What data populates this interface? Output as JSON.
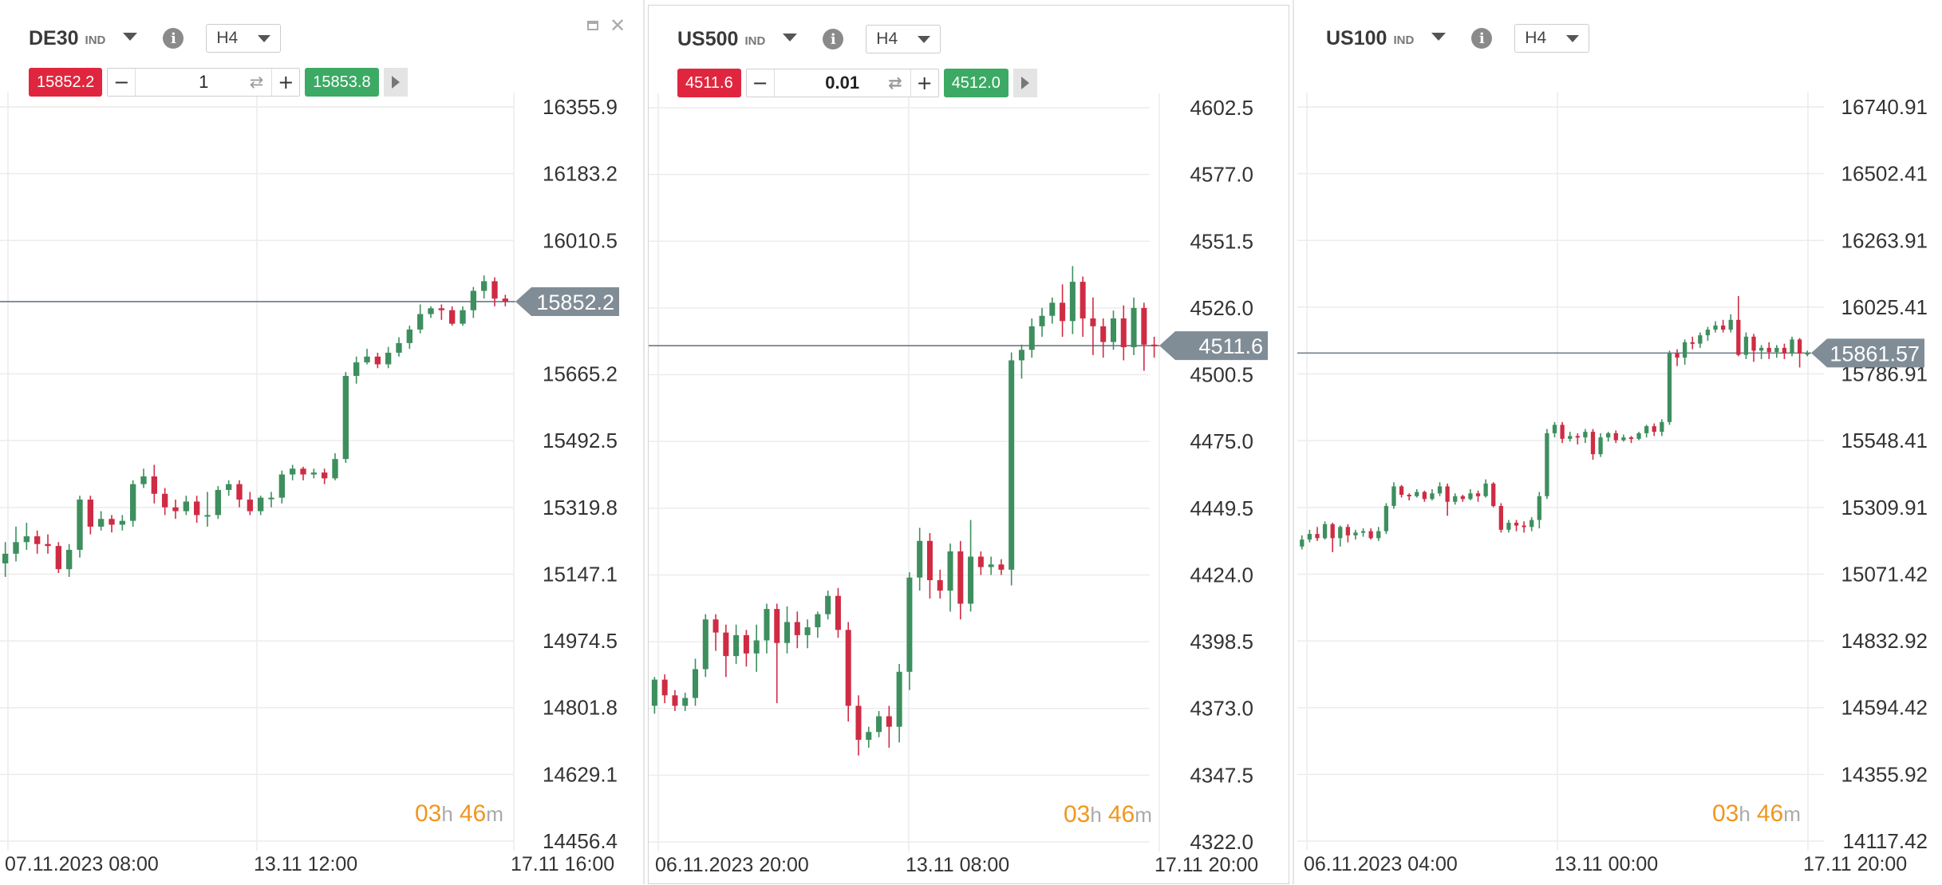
{
  "charts": [
    {
      "symbol": "DE30",
      "type": "IND",
      "timeframe": "H4",
      "sell_price": "15852.2",
      "buy_price": "15853.8",
      "quantity": "1",
      "current_price": "15852.2",
      "timer": {
        "hours": "03",
        "h_unit": "h",
        "minutes": "46",
        "m_unit": "m"
      },
      "y_ticks": [
        "16355.9",
        "16183.2",
        "16010.5",
        "15665.2",
        "15492.5",
        "15319.8",
        "15147.1",
        "14974.5",
        "14801.8",
        "14629.1",
        "14456.4"
      ],
      "x_ticks": [
        "07.11.2023 08:00",
        "13.11 12:00",
        "17.11 16:00"
      ],
      "has_window_controls": true,
      "active": false
    },
    {
      "symbol": "US500",
      "type": "IND",
      "timeframe": "H4",
      "sell_price": "4511.6",
      "buy_price": "4512.0",
      "quantity": "0.01",
      "current_price": "4511.6",
      "timer": {
        "hours": "03",
        "h_unit": "h",
        "minutes": "46",
        "m_unit": "m"
      },
      "y_ticks": [
        "4602.5",
        "4577.0",
        "4551.5",
        "4526.0",
        "4500.5",
        "4475.0",
        "4449.5",
        "4424.0",
        "4398.5",
        "4373.0",
        "4347.5",
        "4322.0"
      ],
      "x_ticks": [
        "06.11.2023 20:00",
        "13.11 08:00",
        "17.11 20:00"
      ],
      "has_window_controls": false,
      "active": true
    },
    {
      "symbol": "US100",
      "type": "IND",
      "timeframe": "H4",
      "current_price": "15861.57",
      "timer": {
        "hours": "03",
        "h_unit": "h",
        "minutes": "46",
        "m_unit": "m"
      },
      "y_ticks": [
        "16740.91",
        "16502.41",
        "16263.91",
        "16025.41",
        "15786.91",
        "15548.41",
        "15309.91",
        "15071.42",
        "14832.92",
        "14594.42",
        "14355.92",
        "14117.42"
      ],
      "x_ticks": [
        "06.11.2023 04:00",
        "13.11 00:00",
        "17.11 20:00"
      ],
      "has_window_controls": false,
      "active": false
    }
  ],
  "chart_data": [
    {
      "type": "candlestick",
      "symbol": "DE30",
      "timeframe": "H4",
      "ylim": [
        14456.4,
        16355.9
      ],
      "yticks": [
        16355.9,
        16183.2,
        16010.5,
        15665.2,
        15492.5,
        15319.8,
        15147.1,
        14974.5,
        14801.8,
        14629.1,
        14456.4
      ],
      "x_labels": [
        "07.11.2023 08:00",
        "13.11 12:00",
        "17.11 16:00"
      ],
      "last_price": 15852.2,
      "bull_color": "#3d8f5e",
      "bear_color": "#cf2c44",
      "candles": [
        [
          15175,
          15200,
          15140,
          15230
        ],
        [
          15200,
          15230,
          15180,
          15270
        ],
        [
          15230,
          15245,
          15210,
          15280
        ],
        [
          15245,
          15225,
          15200,
          15260
        ],
        [
          15225,
          15220,
          15200,
          15250
        ],
        [
          15220,
          15160,
          15150,
          15230
        ],
        [
          15160,
          15210,
          15140,
          15225
        ],
        [
          15210,
          15340,
          15190,
          15350
        ],
        [
          15340,
          15270,
          15250,
          15350
        ],
        [
          15270,
          15290,
          15260,
          15310
        ],
        [
          15290,
          15275,
          15255,
          15300
        ],
        [
          15275,
          15285,
          15260,
          15300
        ],
        [
          15285,
          15380,
          15270,
          15390
        ],
        [
          15380,
          15400,
          15370,
          15420
        ],
        [
          15400,
          15355,
          15330,
          15430
        ],
        [
          15355,
          15320,
          15300,
          15370
        ],
        [
          15320,
          15310,
          15290,
          15340
        ],
        [
          15310,
          15335,
          15300,
          15350
        ],
        [
          15335,
          15300,
          15280,
          15350
        ],
        [
          15300,
          15300,
          15270,
          15360
        ],
        [
          15300,
          15365,
          15290,
          15375
        ],
        [
          15365,
          15380,
          15350,
          15390
        ],
        [
          15380,
          15340,
          15320,
          15390
        ],
        [
          15340,
          15310,
          15300,
          15360
        ],
        [
          15310,
          15345,
          15300,
          15350
        ],
        [
          15345,
          15345,
          15320,
          15360
        ],
        [
          15345,
          15405,
          15330,
          15415
        ],
        [
          15405,
          15420,
          15390,
          15430
        ],
        [
          15420,
          15405,
          15390,
          15425
        ],
        [
          15405,
          15410,
          15395,
          15420
        ],
        [
          15410,
          15395,
          15380,
          15420
        ],
        [
          15395,
          15445,
          15390,
          15460
        ],
        [
          15445,
          15660,
          15435,
          15670
        ],
        [
          15660,
          15695,
          15640,
          15710
        ],
        [
          15695,
          15710,
          15690,
          15730
        ],
        [
          15710,
          15690,
          15680,
          15720
        ],
        [
          15690,
          15720,
          15680,
          15735
        ],
        [
          15720,
          15745,
          15710,
          15760
        ],
        [
          15745,
          15780,
          15730,
          15790
        ],
        [
          15780,
          15820,
          15770,
          15845
        ],
        [
          15820,
          15835,
          15810,
          15840
        ],
        [
          15835,
          15830,
          15805,
          15845
        ],
        [
          15830,
          15795,
          15790,
          15840
        ],
        [
          15795,
          15830,
          15790,
          15840
        ],
        [
          15830,
          15880,
          15810,
          15890
        ],
        [
          15880,
          15905,
          15860,
          15920
        ],
        [
          15905,
          15860,
          15840,
          15915
        ],
        [
          15860,
          15852,
          15840,
          15870
        ]
      ]
    },
    {
      "type": "candlestick",
      "symbol": "US500",
      "timeframe": "H4",
      "ylim": [
        4322.0,
        4602.5
      ],
      "yticks": [
        4602.5,
        4577.0,
        4551.5,
        4526.0,
        4500.5,
        4475.0,
        4449.5,
        4424.0,
        4398.5,
        4373.0,
        4347.5,
        4322.0
      ],
      "x_labels": [
        "06.11.2023 20:00",
        "13.11 08:00",
        "17.11 20:00"
      ],
      "last_price": 4511.6,
      "bull_color": "#3d8f5e",
      "bear_color": "#cf2c44",
      "candles": [
        [
          4374,
          4384,
          4371,
          4385
        ],
        [
          4384,
          4378,
          4375,
          4386
        ],
        [
          4378,
          4374,
          4372,
          4380
        ],
        [
          4374,
          4377,
          4372,
          4379
        ],
        [
          4377,
          4388,
          4374,
          4392
        ],
        [
          4388,
          4407,
          4385,
          4409
        ],
        [
          4407,
          4402,
          4395,
          4409
        ],
        [
          4402,
          4393,
          4385,
          4405
        ],
        [
          4393,
          4401,
          4390,
          4405
        ],
        [
          4401,
          4394,
          4389,
          4403
        ],
        [
          4394,
          4399,
          4387,
          4405
        ],
        [
          4399,
          4411,
          4394,
          4413
        ],
        [
          4411,
          4398,
          4375,
          4413
        ],
        [
          4398,
          4406,
          4394,
          4412
        ],
        [
          4406,
          4401,
          4396,
          4410
        ],
        [
          4401,
          4404,
          4396,
          4407
        ],
        [
          4404,
          4409,
          4400,
          4410
        ],
        [
          4409,
          4416,
          4407,
          4418
        ],
        [
          4416,
          4403,
          4400,
          4419
        ],
        [
          4403,
          4374,
          4368,
          4406
        ],
        [
          4374,
          4361,
          4355,
          4378
        ],
        [
          4361,
          4364,
          4358,
          4366
        ],
        [
          4364,
          4370,
          4362,
          4372
        ],
        [
          4370,
          4366,
          4358,
          4374
        ],
        [
          4366,
          4387,
          4360,
          4390
        ],
        [
          4387,
          4423,
          4380,
          4425
        ],
        [
          4423,
          4437,
          4418,
          4442
        ],
        [
          4437,
          4422,
          4415,
          4440
        ],
        [
          4422,
          4418,
          4415,
          4426
        ],
        [
          4418,
          4433,
          4410,
          4436
        ],
        [
          4433,
          4413,
          4407,
          4437
        ],
        [
          4413,
          4431,
          4410,
          4445
        ],
        [
          4431,
          4427,
          4424,
          4433
        ],
        [
          4427,
          4428,
          4424,
          4431
        ],
        [
          4428,
          4426,
          4424,
          4430
        ],
        [
          4426,
          4506,
          4420,
          4509
        ],
        [
          4506,
          4510,
          4499,
          4512
        ],
        [
          4510,
          4519,
          4507,
          4522
        ],
        [
          4519,
          4523,
          4515,
          4526
        ],
        [
          4523,
          4528,
          4520,
          4530
        ],
        [
          4528,
          4521,
          4515,
          4535
        ],
        [
          4521,
          4536,
          4516,
          4542
        ],
        [
          4536,
          4522,
          4515,
          4538
        ],
        [
          4522,
          4519,
          4508,
          4530
        ],
        [
          4519,
          4513,
          4507,
          4522
        ],
        [
          4513,
          4522,
          4510,
          4525
        ],
        [
          4522,
          4511,
          4506,
          4527
        ],
        [
          4511,
          4526,
          4508,
          4530
        ],
        [
          4526,
          4512,
          4502,
          4528
        ],
        [
          4512,
          4511.6,
          4507,
          4515
        ]
      ]
    },
    {
      "type": "candlestick",
      "symbol": "US100",
      "timeframe": "H4",
      "ylim": [
        14117.42,
        16740.91
      ],
      "yticks": [
        16740.91,
        16502.41,
        16263.91,
        16025.41,
        15786.91,
        15548.41,
        15309.91,
        15071.42,
        14832.92,
        14594.42,
        14355.92,
        14117.42
      ],
      "x_labels": [
        "06.11.2023 04:00",
        "13.11 00:00",
        "17.11 20:00"
      ],
      "last_price": 15861.57,
      "bull_color": "#3d8f5e",
      "bear_color": "#cf2c44",
      "candles": [
        [
          15170,
          15195,
          15160,
          15210
        ],
        [
          15195,
          15215,
          15185,
          15230
        ],
        [
          15215,
          15200,
          15190,
          15240
        ],
        [
          15200,
          15250,
          15195,
          15260
        ],
        [
          15250,
          15200,
          15150,
          15255
        ],
        [
          15200,
          15240,
          15170,
          15245
        ],
        [
          15240,
          15210,
          15185,
          15250
        ],
        [
          15210,
          15220,
          15195,
          15230
        ],
        [
          15220,
          15225,
          15205,
          15235
        ],
        [
          15225,
          15200,
          15195,
          15235
        ],
        [
          15200,
          15225,
          15190,
          15240
        ],
        [
          15225,
          15315,
          15215,
          15325
        ],
        [
          15315,
          15385,
          15305,
          15400
        ],
        [
          15385,
          15355,
          15345,
          15390
        ],
        [
          15355,
          15350,
          15335,
          15360
        ],
        [
          15350,
          15365,
          15345,
          15375
        ],
        [
          15365,
          15340,
          15330,
          15370
        ],
        [
          15340,
          15360,
          15335,
          15375
        ],
        [
          15360,
          15385,
          15350,
          15400
        ],
        [
          15385,
          15330,
          15280,
          15395
        ],
        [
          15330,
          15350,
          15320,
          15360
        ],
        [
          15350,
          15340,
          15330,
          15355
        ],
        [
          15340,
          15360,
          15335,
          15375
        ],
        [
          15360,
          15350,
          15330,
          15370
        ],
        [
          15350,
          15395,
          15345,
          15410
        ],
        [
          15395,
          15315,
          15310,
          15400
        ],
        [
          15315,
          15230,
          15220,
          15325
        ],
        [
          15230,
          15255,
          15220,
          15265
        ],
        [
          15255,
          15245,
          15225,
          15265
        ],
        [
          15245,
          15240,
          15220,
          15260
        ],
        [
          15240,
          15265,
          15225,
          15275
        ],
        [
          15265,
          15350,
          15235,
          15365
        ],
        [
          15350,
          15575,
          15340,
          15590
        ],
        [
          15575,
          15605,
          15560,
          15615
        ],
        [
          15605,
          15555,
          15540,
          15615
        ],
        [
          15555,
          15565,
          15545,
          15580
        ],
        [
          15565,
          15560,
          15535,
          15575
        ],
        [
          15560,
          15580,
          15540,
          15590
        ],
        [
          15580,
          15500,
          15480,
          15590
        ],
        [
          15500,
          15560,
          15490,
          15575
        ],
        [
          15560,
          15575,
          15545,
          15580
        ],
        [
          15575,
          15550,
          15540,
          15585
        ],
        [
          15550,
          15560,
          15545,
          15570
        ],
        [
          15560,
          15555,
          15540,
          15565
        ],
        [
          15555,
          15575,
          15550,
          15580
        ],
        [
          15575,
          15600,
          15560,
          15605
        ],
        [
          15600,
          15580,
          15565,
          15610
        ],
        [
          15580,
          15615,
          15565,
          15625
        ],
        [
          15615,
          15860,
          15605,
          15870
        ],
        [
          15860,
          15845,
          15815,
          15875
        ],
        [
          15845,
          15900,
          15820,
          15910
        ],
        [
          15900,
          15895,
          15875,
          15920
        ],
        [
          15895,
          15925,
          15880,
          15935
        ],
        [
          15925,
          15945,
          15905,
          15955
        ],
        [
          15945,
          15960,
          15935,
          15975
        ],
        [
          15960,
          15945,
          15935,
          15980
        ],
        [
          15945,
          15980,
          15935,
          16000
        ],
        [
          15980,
          15855,
          15850,
          16065
        ],
        [
          15855,
          15920,
          15840,
          15935
        ],
        [
          15920,
          15870,
          15830,
          15930
        ],
        [
          15870,
          15880,
          15840,
          15890
        ],
        [
          15880,
          15865,
          15840,
          15900
        ],
        [
          15865,
          15880,
          15845,
          15890
        ],
        [
          15880,
          15860,
          15840,
          15895
        ],
        [
          15860,
          15910,
          15850,
          15920
        ],
        [
          15910,
          15860,
          15810,
          15915
        ],
        [
          15860,
          15861.57,
          15850,
          15870
        ]
      ]
    }
  ]
}
